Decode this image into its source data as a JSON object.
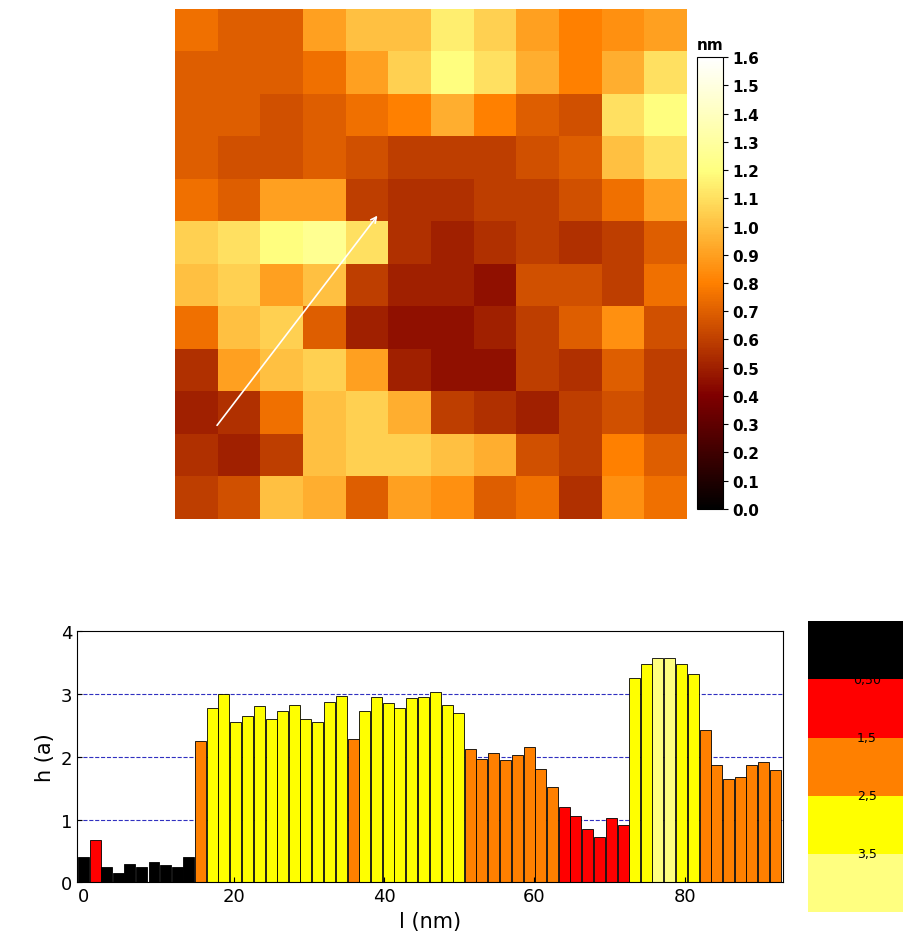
{
  "chart_data": [
    {
      "type": "heatmap",
      "cells": [
        [
          0.75,
          0.7,
          0.7,
          0.9,
          1.0,
          1.0,
          1.15,
          1.05,
          0.9,
          0.8,
          0.85,
          0.9
        ],
        [
          0.7,
          0.7,
          0.7,
          0.75,
          0.9,
          1.05,
          1.2,
          1.1,
          0.95,
          0.8,
          0.95,
          1.1
        ],
        [
          0.7,
          0.7,
          0.65,
          0.7,
          0.75,
          0.8,
          0.95,
          0.8,
          0.7,
          0.65,
          1.1,
          1.2
        ],
        [
          0.7,
          0.65,
          0.65,
          0.7,
          0.65,
          0.6,
          0.6,
          0.6,
          0.65,
          0.7,
          1.0,
          1.1
        ],
        [
          0.75,
          0.7,
          0.9,
          0.9,
          0.6,
          0.55,
          0.55,
          0.6,
          0.6,
          0.65,
          0.75,
          0.9
        ],
        [
          1.05,
          1.1,
          1.2,
          1.25,
          1.1,
          0.55,
          0.5,
          0.55,
          0.6,
          0.55,
          0.6,
          0.7
        ],
        [
          1.0,
          1.05,
          0.9,
          1.0,
          0.6,
          0.5,
          0.5,
          0.45,
          0.65,
          0.65,
          0.6,
          0.75
        ],
        [
          0.75,
          1.0,
          1.05,
          0.7,
          0.5,
          0.45,
          0.45,
          0.5,
          0.6,
          0.7,
          0.85,
          0.65
        ],
        [
          0.55,
          0.9,
          1.0,
          1.05,
          0.9,
          0.5,
          0.45,
          0.45,
          0.6,
          0.55,
          0.7,
          0.6
        ],
        [
          0.5,
          0.55,
          0.75,
          1.0,
          1.05,
          0.95,
          0.6,
          0.55,
          0.5,
          0.6,
          0.65,
          0.6
        ],
        [
          0.55,
          0.5,
          0.6,
          1.0,
          1.05,
          1.05,
          1.0,
          0.95,
          0.65,
          0.6,
          0.8,
          0.7
        ],
        [
          0.6,
          0.65,
          1.0,
          0.95,
          0.7,
          0.9,
          0.85,
          0.7,
          0.75,
          0.55,
          0.85,
          0.75
        ]
      ],
      "clim": [
        0.0,
        1.6
      ],
      "colorbar_label": "nm",
      "colorbar_ticks": [
        {
          "value": 0.0,
          "label": "0.0"
        },
        {
          "value": 0.1,
          "label": "0.1"
        },
        {
          "value": 0.2,
          "label": "0.2"
        },
        {
          "value": 0.3,
          "label": "0.3"
        },
        {
          "value": 0.4,
          "label": "0.4"
        },
        {
          "value": 0.5,
          "label": "0.5"
        },
        {
          "value": 0.6,
          "label": "0.6"
        },
        {
          "value": 0.7,
          "label": "0.7"
        },
        {
          "value": 0.8,
          "label": "0.8"
        },
        {
          "value": 0.9,
          "label": "0.9"
        },
        {
          "value": 1.0,
          "label": "1.0"
        },
        {
          "value": 1.1,
          "label": "1.1"
        },
        {
          "value": 1.2,
          "label": "1.2"
        },
        {
          "value": 1.3,
          "label": "1.3"
        },
        {
          "value": 1.4,
          "label": "1.4"
        },
        {
          "value": 1.5,
          "label": "1.5"
        },
        {
          "value": 1.6,
          "label": "1.6"
        }
      ],
      "tick_labels": false
    },
    {
      "type": "bar",
      "xlabel": "l (nm)",
      "ylabel": "h (a)",
      "x": [
        0,
        1.6,
        3.1,
        4.7,
        6.2,
        7.8,
        9.4,
        10.9,
        12.5,
        14.0,
        15.6,
        17.2,
        18.7,
        20.3,
        21.8,
        23.4,
        25.0,
        26.5,
        28.1,
        29.6,
        31.2,
        32.8,
        34.3,
        35.9,
        37.4,
        39.0,
        40.6,
        42.1,
        43.7,
        45.2,
        46.8,
        48.4,
        49.9,
        51.5,
        53.0,
        54.6,
        56.2,
        57.7,
        59.3,
        60.8,
        62.4,
        64.0,
        65.5,
        67.1,
        68.6,
        70.2,
        71.8,
        73.3,
        74.9,
        76.4,
        78.0,
        79.6,
        81.1,
        82.7,
        84.2,
        85.8,
        87.4,
        88.9,
        90.5,
        92.0
      ],
      "values": [
        0.4,
        0.68,
        0.25,
        0.15,
        0.3,
        0.25,
        0.32,
        0.27,
        0.25,
        0.4,
        2.25,
        2.78,
        3.0,
        2.55,
        2.65,
        2.8,
        2.6,
        2.73,
        2.82,
        2.6,
        2.55,
        2.87,
        2.97,
        2.28,
        2.72,
        2.95,
        2.85,
        2.78,
        2.93,
        2.95,
        3.02,
        2.82,
        2.7,
        2.12,
        1.97,
        2.05,
        1.95,
        2.02,
        2.15,
        1.8,
        1.52,
        1.2,
        1.05,
        0.85,
        0.72,
        1.02,
        0.92,
        3.25,
        3.48,
        3.57,
        3.57,
        3.48,
        3.32,
        2.42,
        1.87,
        1.65,
        1.68,
        1.87,
        1.92,
        1.78
      ],
      "colors": [
        "#000000",
        "#ff0000",
        "#000000",
        "#000000",
        "#000000",
        "#000000",
        "#000000",
        "#000000",
        "#000000",
        "#000000",
        "#ff8000",
        "#ffff00",
        "#ffff00",
        "#ffff00",
        "#ffff00",
        "#ffff00",
        "#ffff00",
        "#ffff00",
        "#ffff00",
        "#ffff00",
        "#ffff00",
        "#ffff00",
        "#ffff00",
        "#ff8000",
        "#ffff00",
        "#ffff00",
        "#ffff00",
        "#ffff00",
        "#ffff00",
        "#ffff00",
        "#ffff00",
        "#ffff00",
        "#ffff00",
        "#ff8000",
        "#ff8000",
        "#ff8000",
        "#ff8000",
        "#ff8000",
        "#ff8000",
        "#ff8000",
        "#ff8000",
        "#ff0000",
        "#ff0000",
        "#ff0000",
        "#ff0000",
        "#ff0000",
        "#ff0000",
        "#ffff00",
        "#ffff00",
        "#ffff80",
        "#ffff80",
        "#ffff00",
        "#ffff00",
        "#ff8000",
        "#ff8000",
        "#ff8000",
        "#ff8000",
        "#ff8000",
        "#ff8000",
        "#ff8000"
      ],
      "xlim": [
        -0.8,
        93
      ],
      "ylim": [
        0,
        4
      ],
      "xticks": [
        0,
        20,
        40,
        60,
        80
      ],
      "yticks": [
        0,
        1,
        2,
        3,
        4
      ],
      "grid": true,
      "color_scale": {
        "colors": [
          "#000000",
          "#ff0000",
          "#ff8000",
          "#ffff00",
          "#ffff80"
        ],
        "bounds": [
          -0.5,
          0.5,
          1.5,
          2.5,
          3.5,
          4.5
        ],
        "ticks": [
          {
            "value": 0.5,
            "label": "0,50"
          },
          {
            "value": 1.5,
            "label": "1,5"
          },
          {
            "value": 2.5,
            "label": "2,5"
          },
          {
            "value": 3.5,
            "label": "3,5"
          }
        ]
      }
    }
  ]
}
